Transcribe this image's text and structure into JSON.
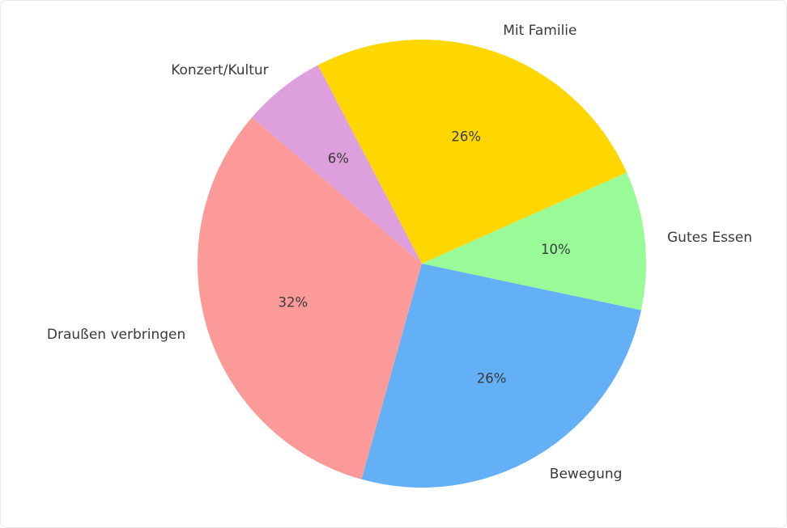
{
  "canvas": {
    "background": "#ffffff",
    "border_color": "#e8e8e8"
  },
  "chart_data": {
    "type": "pie",
    "title": "",
    "labels": [
      "Mit Familie",
      "Gutes Essen",
      "Bewegung",
      "Draußen verbringen",
      "Konzert/Kultur"
    ],
    "values": [
      26,
      10,
      26,
      32,
      6
    ],
    "pct_labels": [
      "26%",
      "10%",
      "26%",
      "32%",
      "6%"
    ],
    "colors": [
      "#FFD700",
      "#98FB98",
      "#64B0F6",
      "#FC9A9A",
      "#DDA0DD"
    ],
    "start_angle": 117.6,
    "direction": "clockwise",
    "label_distance": 1.1,
    "pct_distance": 0.6,
    "text_color": "#3a3a3a",
    "legend": "none",
    "grid": false
  }
}
